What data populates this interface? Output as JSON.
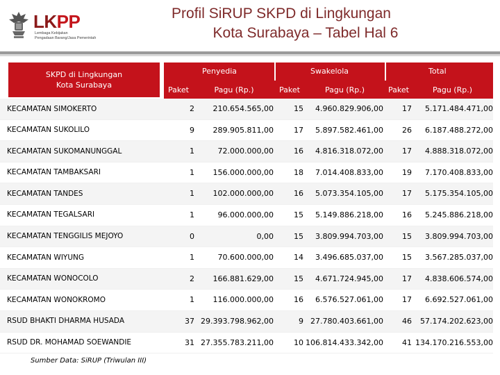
{
  "header": {
    "logo": {
      "brand_main": "LK",
      "brand_accent": "PP",
      "subtitle_line1": "Lembaga Kebijakan",
      "subtitle_line2": "Pengadaan Barang/Jasa Pemerintah"
    },
    "title_line1": "Profil SiRUP SKPD di Lingkungan",
    "title_line2": "Kota Surabaya – Tabel Hal 6"
  },
  "table": {
    "header": {
      "skpd_line1": "SKPD di Lingkungan",
      "skpd_line2": "Kota Surabaya",
      "penyedia": "Penyedia",
      "swakelola": "Swakelola",
      "total": "Total",
      "paket": "Paket",
      "pagu": "Pagu (Rp.)"
    },
    "rows": [
      {
        "name": "KECAMATAN SIMOKERTO",
        "p_paket": "2",
        "p_pagu": "210.654.565,00",
        "s_paket": "15",
        "s_pagu": "4.960.829.906,00",
        "t_paket": "17",
        "t_pagu": "5.171.484.471,00"
      },
      {
        "name": "KECAMATAN SUKOLILO",
        "p_paket": "9",
        "p_pagu": "289.905.811,00",
        "s_paket": "17",
        "s_pagu": "5.897.582.461,00",
        "t_paket": "26",
        "t_pagu": "6.187.488.272,00"
      },
      {
        "name": "KECAMATAN SUKOMANUNGGAL",
        "p_paket": "1",
        "p_pagu": "72.000.000,00",
        "s_paket": "16",
        "s_pagu": "4.816.318.072,00",
        "t_paket": "17",
        "t_pagu": "4.888.318.072,00"
      },
      {
        "name": "KECAMATAN TAMBAKSARI",
        "p_paket": "1",
        "p_pagu": "156.000.000,00",
        "s_paket": "18",
        "s_pagu": "7.014.408.833,00",
        "t_paket": "19",
        "t_pagu": "7.170.408.833,00"
      },
      {
        "name": "KECAMATAN TANDES",
        "p_paket": "1",
        "p_pagu": "102.000.000,00",
        "s_paket": "16",
        "s_pagu": "5.073.354.105,00",
        "t_paket": "17",
        "t_pagu": "5.175.354.105,00"
      },
      {
        "name": "KECAMATAN TEGALSARI",
        "p_paket": "1",
        "p_pagu": "96.000.000,00",
        "s_paket": "15",
        "s_pagu": "5.149.886.218,00",
        "t_paket": "16",
        "t_pagu": "5.245.886.218,00"
      },
      {
        "name": "KECAMATAN TENGGILIS MEJOYO",
        "p_paket": "0",
        "p_pagu": "0,00",
        "s_paket": "15",
        "s_pagu": "3.809.994.703,00",
        "t_paket": "15",
        "t_pagu": "3.809.994.703,00"
      },
      {
        "name": "KECAMATAN WIYUNG",
        "p_paket": "1",
        "p_pagu": "70.600.000,00",
        "s_paket": "14",
        "s_pagu": "3.496.685.037,00",
        "t_paket": "15",
        "t_pagu": "3.567.285.037,00"
      },
      {
        "name": "KECAMATAN WONOCOLO",
        "p_paket": "2",
        "p_pagu": "166.881.629,00",
        "s_paket": "15",
        "s_pagu": "4.671.724.945,00",
        "t_paket": "17",
        "t_pagu": "4.838.606.574,00"
      },
      {
        "name": "KECAMATAN WONOKROMO",
        "p_paket": "1",
        "p_pagu": "116.000.000,00",
        "s_paket": "16",
        "s_pagu": "6.576.527.061,00",
        "t_paket": "17",
        "t_pagu": "6.692.527.061,00"
      },
      {
        "name": "RSUD BHAKTI DHARMA HUSADA",
        "p_paket": "37",
        "p_pagu": "29.393.798.962,00",
        "s_paket": "9",
        "s_pagu": "27.780.403.661,00",
        "t_paket": "46",
        "t_pagu": "57.174.202.623,00"
      },
      {
        "name": "RSUD DR. MOHAMAD SOEWANDIE",
        "p_paket": "31",
        "p_pagu": "27.355.783.211,00",
        "s_paket": "10",
        "s_pagu": "106.814.433.342,00",
        "t_paket": "41",
        "t_pagu": "134.170.216.553,00"
      }
    ]
  },
  "footer": {
    "source": "Sumber Data: SiRUP (Triwulan III)"
  },
  "colors": {
    "header_red": "#c4121b",
    "title_color": "#7e2a2a",
    "brand": "#8b1a1a"
  }
}
